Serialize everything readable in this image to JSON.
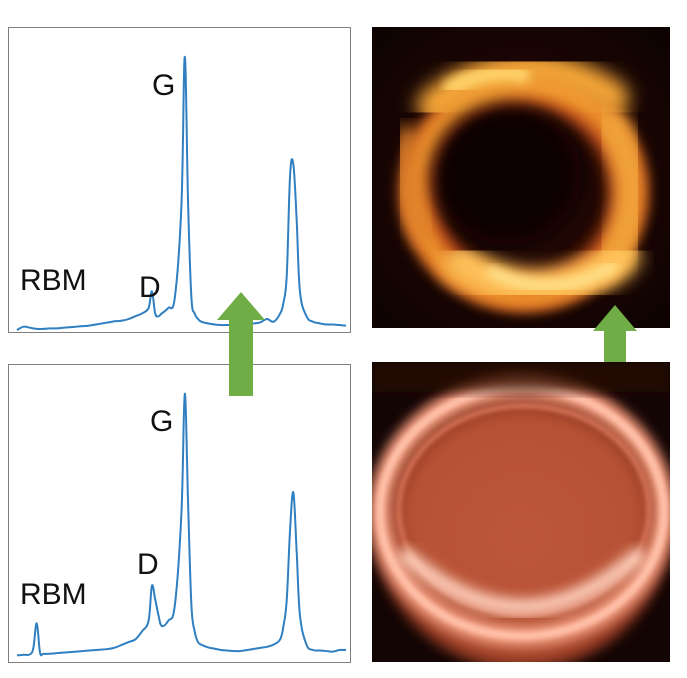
{
  "chart_data": [
    {
      "type": "line",
      "panel": "top-left",
      "title": "",
      "xlabel": "",
      "ylabel": "",
      "grid": false,
      "legend": "none",
      "ylim": [
        0,
        1
      ],
      "x": [
        0,
        2,
        4,
        6,
        8,
        10,
        12,
        14,
        16,
        18,
        20,
        22,
        24,
        26,
        28,
        30,
        32,
        34,
        36,
        38,
        40,
        41,
        42,
        43,
        44,
        46,
        48,
        50,
        51,
        52,
        53,
        54,
        55,
        56,
        58,
        60,
        62,
        64,
        66,
        68,
        70,
        72,
        74,
        76,
        78,
        80,
        81,
        82,
        83,
        84,
        85,
        86,
        88,
        90,
        92,
        94,
        96,
        98,
        100
      ],
      "series": [
        {
          "color": "#2f7fc1",
          "values": [
            0.0,
            0.012,
            0.008,
            0.004,
            0.004,
            0.006,
            0.006,
            0.008,
            0.01,
            0.012,
            0.014,
            0.016,
            0.02,
            0.024,
            0.028,
            0.032,
            0.034,
            0.04,
            0.05,
            0.06,
            0.08,
            0.14,
            0.06,
            0.05,
            0.06,
            0.08,
            0.12,
            0.46,
            0.99,
            0.46,
            0.12,
            0.06,
            0.04,
            0.03,
            0.024,
            0.02,
            0.018,
            0.018,
            0.018,
            0.02,
            0.022,
            0.024,
            0.028,
            0.04,
            0.03,
            0.06,
            0.1,
            0.2,
            0.56,
            0.6,
            0.4,
            0.14,
            0.05,
            0.03,
            0.024,
            0.02,
            0.02,
            0.018,
            0.016
          ]
        }
      ],
      "annotations": [
        {
          "text": "RBM",
          "x": 6,
          "y": 0.18
        },
        {
          "text": "D",
          "x": 40,
          "y": 0.16
        },
        {
          "text": "G",
          "x": 47,
          "y": 0.88
        }
      ]
    },
    {
      "type": "line",
      "panel": "bottom-left",
      "title": "",
      "xlabel": "",
      "ylabel": "",
      "grid": false,
      "legend": "none",
      "ylim": [
        0,
        1
      ],
      "x": [
        0,
        2,
        4,
        5,
        6,
        7,
        8,
        10,
        12,
        14,
        16,
        18,
        20,
        22,
        24,
        26,
        28,
        30,
        32,
        34,
        36,
        38,
        40,
        41,
        42,
        43,
        44,
        46,
        48,
        50,
        51,
        52,
        53,
        54,
        55,
        56,
        58,
        60,
        62,
        64,
        66,
        68,
        70,
        72,
        74,
        76,
        78,
        80,
        81,
        82,
        83,
        84,
        85,
        86,
        88,
        90,
        92,
        94,
        96,
        98,
        100
      ],
      "series": [
        {
          "color": "#2f7fc1",
          "values": [
            0.01,
            0.012,
            0.014,
            0.04,
            0.13,
            0.02,
            0.016,
            0.016,
            0.018,
            0.02,
            0.022,
            0.024,
            0.026,
            0.028,
            0.03,
            0.032,
            0.034,
            0.04,
            0.05,
            0.06,
            0.07,
            0.1,
            0.14,
            0.27,
            0.22,
            0.16,
            0.12,
            0.14,
            0.2,
            0.55,
            0.99,
            0.58,
            0.2,
            0.1,
            0.06,
            0.05,
            0.04,
            0.035,
            0.03,
            0.028,
            0.026,
            0.026,
            0.03,
            0.034,
            0.038,
            0.042,
            0.05,
            0.07,
            0.12,
            0.22,
            0.48,
            0.62,
            0.4,
            0.16,
            0.05,
            0.03,
            0.028,
            0.026,
            0.024,
            0.03,
            0.03
          ]
        }
      ],
      "annotations": [
        {
          "text": "RBM",
          "x": 6,
          "y": 0.2
        },
        {
          "text": "D",
          "x": 40,
          "y": 0.3
        },
        {
          "text": "G",
          "x": 47,
          "y": 0.86
        }
      ]
    }
  ],
  "figure": {
    "arrow_color": "#70ad47",
    "photo_top": {
      "description_colors": [
        "#ffd36b",
        "#f29a2e",
        "#c4511c",
        "#5a1607",
        "#0d0302"
      ]
    },
    "photo_bottom": {
      "description_colors": [
        "#ffb9a1",
        "#e07a5a",
        "#b85236",
        "#5c1e10",
        "#130504"
      ]
    }
  }
}
